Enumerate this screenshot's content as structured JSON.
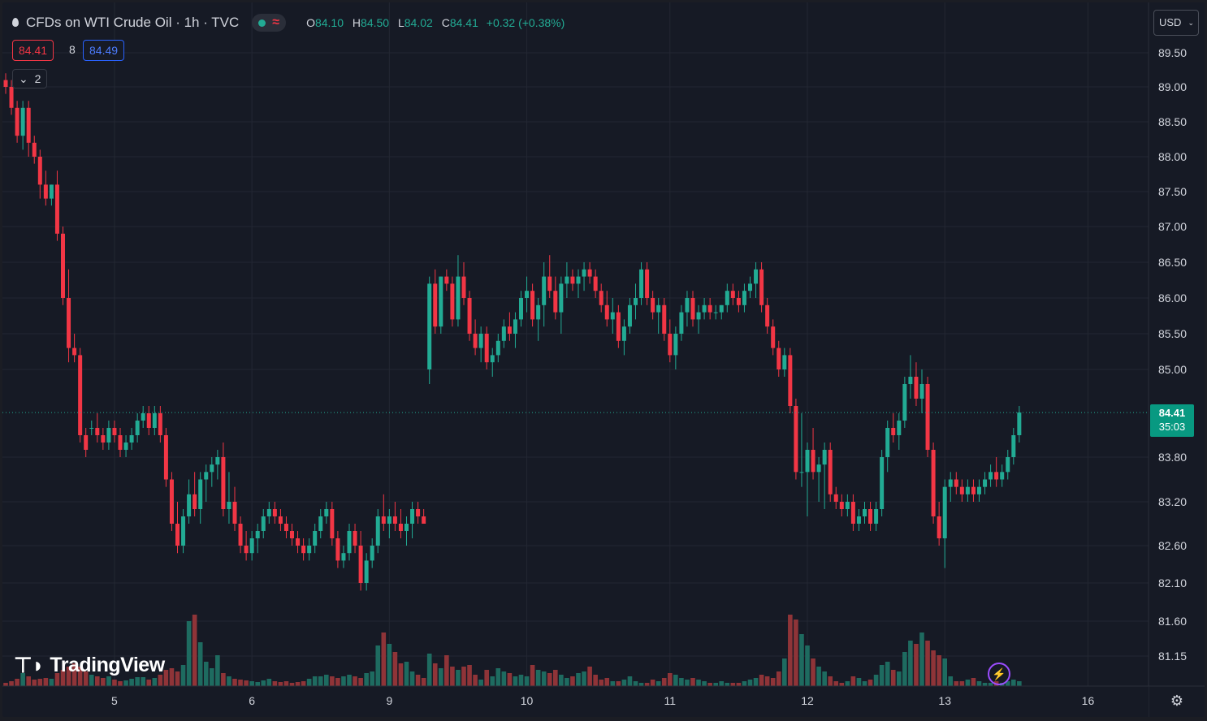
{
  "header": {
    "title": "CFDs on WTI Crude Oil · 1h · TVC",
    "wave_icon": "≈",
    "ohlc": {
      "o_label": "O",
      "o": "84.10",
      "h_label": "H",
      "h": "84.50",
      "l_label": "L",
      "l": "84.02",
      "c_label": "C",
      "c": "84.41",
      "change": "+0.32 (+0.38%)"
    }
  },
  "trade": {
    "sell": "84.41",
    "spread": "8",
    "buy": "84.49"
  },
  "indicators_toggle": {
    "icon": "chevron-down-icon",
    "count": "2"
  },
  "currency": {
    "label": "USD"
  },
  "last_price": {
    "price": "84.41",
    "countdown": "35:03"
  },
  "logo": {
    "text": "TradingView"
  },
  "colors": {
    "up": "#22ab94",
    "down": "#f23645",
    "up_vol": "#1e6b60",
    "down_vol": "#8f3438",
    "bg": "#161a25",
    "grid": "#232732",
    "text": "#d1d4dc"
  },
  "chart_data": {
    "type": "candlestick",
    "title": "CFDs on WTI Crude Oil · 1h · TVC",
    "x_ticks": [
      {
        "label": "5",
        "index": 19
      },
      {
        "label": "6",
        "index": 43
      },
      {
        "label": "9",
        "index": 67
      },
      {
        "label": "10",
        "index": 91
      },
      {
        "label": "11",
        "index": 116
      },
      {
        "label": "12",
        "index": 140
      },
      {
        "label": "13",
        "index": 164
      },
      {
        "label": "16",
        "index": 189
      }
    ],
    "y_ticks": [
      "89.50",
      "89.00",
      "88.50",
      "88.00",
      "87.50",
      "87.00",
      "86.50",
      "86.00",
      "85.50",
      "85.00",
      "83.80",
      "83.20",
      "82.60",
      "82.10",
      "81.60",
      "81.15"
    ],
    "y_scale": "non-uniform axis labels as shown",
    "ohlcv": [
      [
        89.1,
        89.2,
        88.9,
        89.0,
        4
      ],
      [
        89.0,
        89.1,
        88.6,
        88.7,
        6
      ],
      [
        88.7,
        88.8,
        88.2,
        88.3,
        9
      ],
      [
        88.3,
        88.8,
        88.1,
        88.7,
        16
      ],
      [
        88.7,
        88.8,
        88.0,
        88.2,
        12
      ],
      [
        88.2,
        88.3,
        87.9,
        88.0,
        8
      ],
      [
        88.0,
        88.1,
        87.4,
        87.6,
        9
      ],
      [
        87.6,
        87.8,
        87.3,
        87.4,
        10
      ],
      [
        87.4,
        87.6,
        87.3,
        87.6,
        9
      ],
      [
        87.6,
        87.8,
        86.8,
        86.9,
        16
      ],
      [
        86.9,
        87.0,
        85.9,
        86.0,
        20
      ],
      [
        86.0,
        86.4,
        85.1,
        85.3,
        24
      ],
      [
        85.3,
        85.5,
        85.1,
        85.2,
        28
      ],
      [
        85.2,
        85.3,
        84.0,
        84.1,
        24
      ],
      [
        84.1,
        84.2,
        83.8,
        83.9,
        18
      ],
      [
        84.2,
        84.3,
        84.1,
        84.2,
        14
      ],
      [
        84.2,
        84.4,
        84.0,
        84.1,
        12
      ],
      [
        84.1,
        84.2,
        83.9,
        84.0,
        10
      ],
      [
        84.0,
        84.3,
        83.9,
        84.2,
        12
      ],
      [
        84.2,
        84.3,
        84.0,
        84.1,
        8
      ],
      [
        84.1,
        84.2,
        83.8,
        83.9,
        6
      ],
      [
        83.9,
        84.1,
        83.8,
        84.0,
        7
      ],
      [
        84.0,
        84.2,
        83.9,
        84.1,
        9
      ],
      [
        84.1,
        84.4,
        84.0,
        84.3,
        11
      ],
      [
        84.3,
        84.5,
        84.2,
        84.4,
        11
      ],
      [
        84.4,
        84.5,
        84.1,
        84.2,
        8
      ],
      [
        84.2,
        84.5,
        84.1,
        84.4,
        10
      ],
      [
        84.4,
        84.5,
        84.0,
        84.1,
        14
      ],
      [
        84.1,
        84.2,
        83.4,
        83.5,
        20
      ],
      [
        83.5,
        83.6,
        82.8,
        82.9,
        22
      ],
      [
        82.9,
        83.2,
        82.5,
        82.6,
        18
      ],
      [
        82.6,
        83.1,
        82.5,
        83.0,
        26
      ],
      [
        83.0,
        83.5,
        82.9,
        83.3,
        80
      ],
      [
        83.3,
        83.6,
        83.0,
        83.1,
        88
      ],
      [
        83.1,
        83.6,
        82.9,
        83.5,
        54
      ],
      [
        83.5,
        83.7,
        83.2,
        83.6,
        30
      ],
      [
        83.6,
        83.8,
        83.4,
        83.7,
        22
      ],
      [
        83.7,
        83.9,
        83.5,
        83.8,
        38
      ],
      [
        83.8,
        84.0,
        83.0,
        83.1,
        16
      ],
      [
        83.1,
        83.6,
        82.9,
        83.2,
        12
      ],
      [
        83.2,
        83.4,
        82.8,
        82.9,
        9
      ],
      [
        82.9,
        83.0,
        82.5,
        82.6,
        8
      ],
      [
        82.6,
        82.8,
        82.4,
        82.5,
        7
      ],
      [
        82.5,
        82.8,
        82.4,
        82.7,
        6
      ],
      [
        82.7,
        82.9,
        82.5,
        82.8,
        5
      ],
      [
        82.8,
        83.1,
        82.7,
        83.0,
        7
      ],
      [
        83.0,
        83.2,
        82.9,
        83.1,
        9
      ],
      [
        83.1,
        83.2,
        82.9,
        83.0,
        6
      ],
      [
        83.0,
        83.1,
        82.8,
        82.9,
        5
      ],
      [
        82.9,
        83.0,
        82.7,
        82.8,
        6
      ],
      [
        82.8,
        82.9,
        82.6,
        82.7,
        4
      ],
      [
        82.7,
        82.8,
        82.5,
        82.6,
        5
      ],
      [
        82.6,
        82.7,
        82.4,
        82.5,
        6
      ],
      [
        82.5,
        82.7,
        82.4,
        82.6,
        9
      ],
      [
        82.6,
        82.9,
        82.5,
        82.8,
        12
      ],
      [
        82.8,
        83.1,
        82.7,
        83.0,
        12
      ],
      [
        83.0,
        83.2,
        82.9,
        83.1,
        14
      ],
      [
        83.1,
        83.2,
        82.6,
        82.7,
        12
      ],
      [
        82.7,
        82.8,
        82.3,
        82.4,
        10
      ],
      [
        82.4,
        82.6,
        82.3,
        82.5,
        12
      ],
      [
        82.5,
        82.9,
        82.4,
        82.8,
        14
      ],
      [
        82.8,
        82.9,
        82.5,
        82.6,
        12
      ],
      [
        82.6,
        82.8,
        82.0,
        82.1,
        10
      ],
      [
        82.1,
        82.5,
        82.0,
        82.4,
        16
      ],
      [
        82.4,
        82.7,
        82.3,
        82.6,
        18
      ],
      [
        82.6,
        83.1,
        82.5,
        83.0,
        50
      ],
      [
        83.0,
        83.3,
        82.8,
        82.9,
        66
      ],
      [
        82.9,
        83.1,
        82.7,
        83.0,
        52
      ],
      [
        83.0,
        83.2,
        82.8,
        82.9,
        42
      ],
      [
        82.9,
        83.1,
        82.7,
        82.8,
        28
      ],
      [
        82.8,
        83.0,
        82.6,
        82.9,
        30
      ],
      [
        82.9,
        83.2,
        82.7,
        83.1,
        18
      ],
      [
        83.1,
        83.2,
        82.9,
        83.0,
        14
      ],
      [
        83.0,
        83.1,
        82.9,
        82.9,
        10
      ],
      [
        85.0,
        86.3,
        84.8,
        86.2,
        40
      ],
      [
        86.2,
        86.4,
        85.5,
        85.6,
        28
      ],
      [
        85.6,
        86.3,
        85.5,
        86.3,
        22
      ],
      [
        86.3,
        86.4,
        86.1,
        86.2,
        38
      ],
      [
        86.2,
        86.3,
        85.6,
        85.7,
        24
      ],
      [
        85.7,
        86.6,
        85.6,
        86.3,
        20
      ],
      [
        86.3,
        86.5,
        85.9,
        86.0,
        24
      ],
      [
        86.0,
        86.1,
        85.4,
        85.5,
        26
      ],
      [
        85.5,
        85.7,
        85.2,
        85.3,
        14
      ],
      [
        85.3,
        85.6,
        85.1,
        85.5,
        8
      ],
      [
        85.5,
        85.6,
        85.0,
        85.1,
        20
      ],
      [
        85.1,
        85.3,
        84.9,
        85.2,
        12
      ],
      [
        85.2,
        85.5,
        85.1,
        85.4,
        22
      ],
      [
        85.4,
        85.7,
        85.3,
        85.6,
        18
      ],
      [
        85.6,
        85.8,
        85.4,
        85.5,
        16
      ],
      [
        85.5,
        85.8,
        85.3,
        85.7,
        12
      ],
      [
        85.7,
        86.1,
        85.6,
        86.0,
        14
      ],
      [
        86.0,
        86.3,
        85.8,
        86.1,
        12
      ],
      [
        86.1,
        86.2,
        85.6,
        85.7,
        26
      ],
      [
        85.7,
        86.0,
        85.4,
        85.9,
        20
      ],
      [
        85.9,
        86.5,
        85.6,
        86.3,
        18
      ],
      [
        86.3,
        86.6,
        86.0,
        86.1,
        16
      ],
      [
        86.1,
        86.3,
        85.7,
        85.8,
        20
      ],
      [
        85.8,
        86.3,
        85.5,
        86.2,
        14
      ],
      [
        86.2,
        86.5,
        86.0,
        86.3,
        10
      ],
      [
        86.3,
        86.4,
        86.1,
        86.2,
        12
      ],
      [
        86.2,
        86.4,
        86.0,
        86.3,
        16
      ],
      [
        86.3,
        86.5,
        86.1,
        86.4,
        18
      ],
      [
        86.4,
        86.5,
        86.2,
        86.3,
        24
      ],
      [
        86.3,
        86.4,
        86.0,
        86.1,
        14
      ],
      [
        86.1,
        86.2,
        85.8,
        85.9,
        8
      ],
      [
        85.9,
        86.1,
        85.6,
        85.7,
        10
      ],
      [
        85.7,
        86.0,
        85.5,
        85.8,
        6
      ],
      [
        85.8,
        85.9,
        85.3,
        85.4,
        6
      ],
      [
        85.4,
        85.7,
        85.2,
        85.6,
        8
      ],
      [
        85.6,
        86.0,
        85.5,
        85.9,
        12
      ],
      [
        85.9,
        86.2,
        85.7,
        86.0,
        6
      ],
      [
        86.0,
        86.5,
        85.9,
        86.4,
        4
      ],
      [
        86.4,
        86.5,
        85.9,
        86.0,
        4
      ],
      [
        86.0,
        86.1,
        85.7,
        85.8,
        8
      ],
      [
        85.8,
        86.0,
        85.5,
        85.9,
        6
      ],
      [
        85.9,
        86.0,
        85.4,
        85.5,
        10
      ],
      [
        85.5,
        85.7,
        85.1,
        85.2,
        16
      ],
      [
        85.2,
        85.6,
        85.0,
        85.5,
        14
      ],
      [
        85.5,
        85.9,
        85.4,
        85.8,
        10
      ],
      [
        85.8,
        86.1,
        85.6,
        86.0,
        8
      ],
      [
        86.0,
        86.1,
        85.6,
        85.7,
        10
      ],
      [
        85.7,
        85.9,
        85.5,
        85.8,
        8
      ],
      [
        85.8,
        86.0,
        85.7,
        85.9,
        6
      ],
      [
        85.9,
        86.0,
        85.7,
        85.8,
        4
      ],
      [
        85.8,
        85.9,
        85.7,
        85.8,
        4
      ],
      [
        85.8,
        85.9,
        85.7,
        85.9,
        6
      ],
      [
        85.9,
        86.2,
        85.8,
        86.1,
        4
      ],
      [
        86.1,
        86.2,
        85.9,
        86.0,
        4
      ],
      [
        86.0,
        86.1,
        85.8,
        85.9,
        4
      ],
      [
        85.9,
        86.2,
        85.8,
        86.1,
        6
      ],
      [
        86.1,
        86.3,
        86.0,
        86.2,
        8
      ],
      [
        86.2,
        86.5,
        86.0,
        86.4,
        10
      ],
      [
        86.4,
        86.5,
        85.8,
        85.9,
        14
      ],
      [
        85.9,
        86.0,
        85.5,
        85.6,
        12
      ],
      [
        85.6,
        85.7,
        85.2,
        85.3,
        10
      ],
      [
        85.3,
        85.4,
        84.9,
        85.0,
        18
      ],
      [
        85.0,
        85.3,
        84.9,
        85.2,
        34
      ],
      [
        85.2,
        85.3,
        84.4,
        84.5,
        88
      ],
      [
        84.5,
        84.6,
        83.5,
        83.6,
        82
      ],
      [
        83.6,
        84.4,
        83.4,
        83.6,
        64
      ],
      [
        83.6,
        84.0,
        83.0,
        83.9,
        50
      ],
      [
        83.9,
        84.2,
        83.5,
        83.6,
        34
      ],
      [
        83.6,
        83.8,
        83.2,
        83.7,
        24
      ],
      [
        83.7,
        84.0,
        83.1,
        83.9,
        18
      ],
      [
        83.9,
        84.0,
        83.2,
        83.3,
        12
      ],
      [
        83.3,
        83.4,
        83.1,
        83.2,
        6
      ],
      [
        83.2,
        83.3,
        83.0,
        83.1,
        4
      ],
      [
        83.1,
        83.3,
        83.0,
        83.2,
        6
      ],
      [
        83.2,
        83.3,
        82.8,
        82.9,
        12
      ],
      [
        82.9,
        83.1,
        82.8,
        83.0,
        10
      ],
      [
        83.0,
        83.2,
        82.9,
        83.1,
        6
      ],
      [
        83.1,
        83.2,
        82.8,
        82.9,
        8
      ],
      [
        82.9,
        83.2,
        82.8,
        83.1,
        14
      ],
      [
        83.1,
        83.9,
        83.0,
        83.8,
        26
      ],
      [
        83.8,
        84.3,
        83.6,
        84.2,
        30
      ],
      [
        84.2,
        84.4,
        84.0,
        84.1,
        20
      ],
      [
        84.1,
        84.4,
        83.9,
        84.3,
        18
      ],
      [
        84.3,
        84.9,
        84.2,
        84.8,
        42
      ],
      [
        84.8,
        85.2,
        84.6,
        84.9,
        56
      ],
      [
        84.9,
        85.1,
        84.5,
        84.6,
        52
      ],
      [
        84.6,
        85.0,
        84.4,
        84.8,
        66
      ],
      [
        84.8,
        84.9,
        83.8,
        83.9,
        56
      ],
      [
        83.9,
        84.0,
        82.9,
        83.0,
        44
      ],
      [
        83.0,
        83.2,
        82.6,
        82.7,
        38
      ],
      [
        82.7,
        83.5,
        82.3,
        83.4,
        34
      ],
      [
        83.4,
        83.6,
        83.2,
        83.5,
        12
      ],
      [
        83.5,
        83.6,
        83.3,
        83.4,
        6
      ],
      [
        83.4,
        83.5,
        83.2,
        83.3,
        6
      ],
      [
        83.3,
        83.5,
        83.2,
        83.4,
        8
      ],
      [
        83.4,
        83.5,
        83.2,
        83.3,
        10
      ],
      [
        83.3,
        83.5,
        83.2,
        83.4,
        6
      ],
      [
        83.4,
        83.6,
        83.3,
        83.5,
        4
      ],
      [
        83.5,
        83.7,
        83.4,
        83.6,
        4
      ],
      [
        83.6,
        83.8,
        83.4,
        83.5,
        6
      ],
      [
        83.5,
        83.7,
        83.4,
        83.6,
        4
      ],
      [
        83.6,
        83.9,
        83.5,
        83.8,
        6
      ],
      [
        83.8,
        84.2,
        83.7,
        84.1,
        8
      ],
      [
        84.1,
        84.5,
        84.0,
        84.41,
        6
      ]
    ]
  }
}
